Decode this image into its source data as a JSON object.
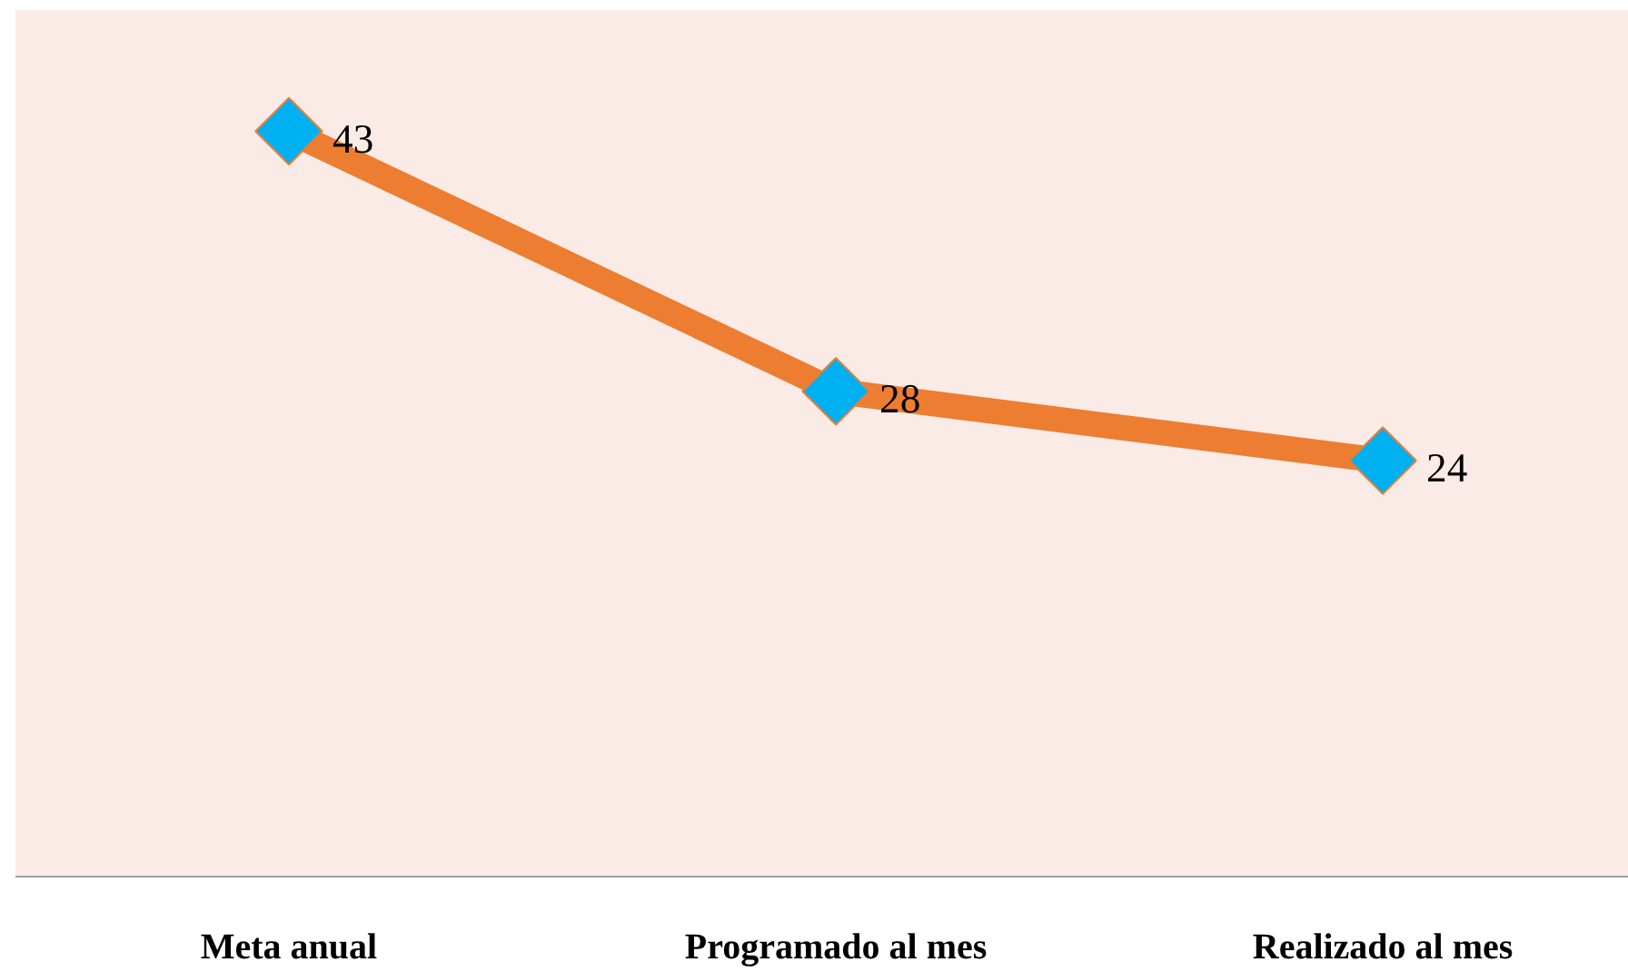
{
  "chart_data": {
    "type": "line",
    "categories": [
      "Meta anual",
      "Programado al mes",
      "Realizado al mes"
    ],
    "series": [
      {
        "color": "#ed7d31",
        "values": [
          43,
          28,
          24
        ]
      }
    ],
    "ylim": [
      0,
      50
    ],
    "tick_labels": "x",
    "marker": "diamond",
    "line_style": "solid",
    "data_labels": true
  }
}
